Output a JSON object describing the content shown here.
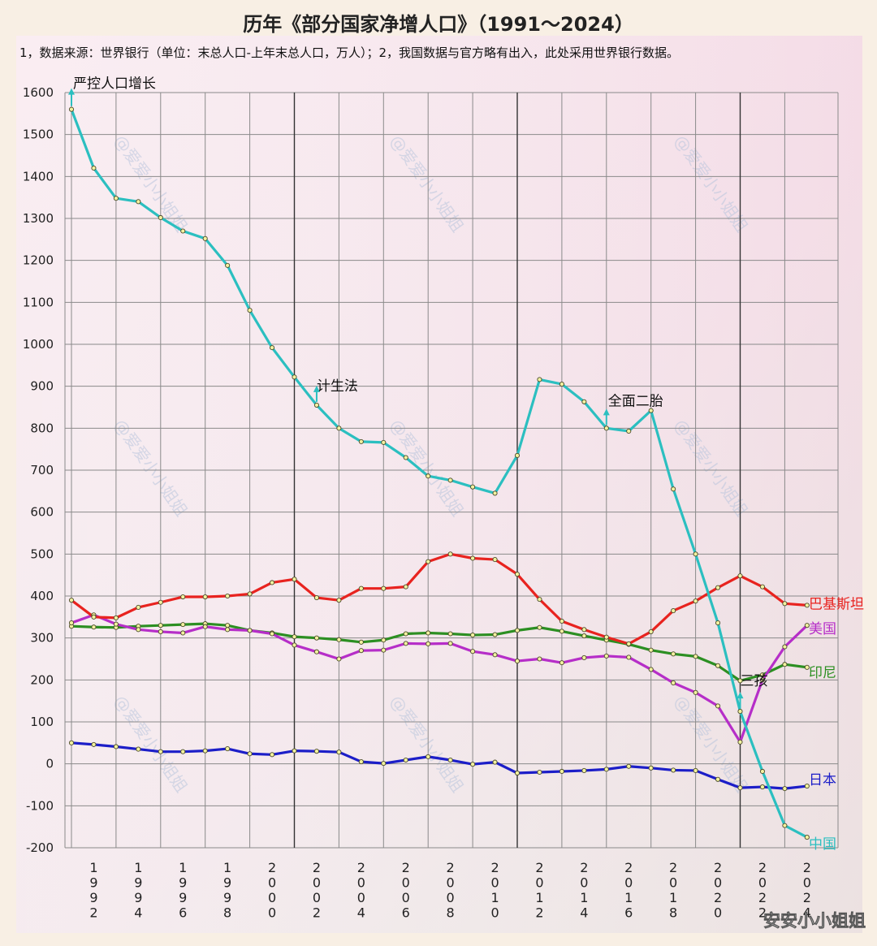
{
  "chart_data": {
    "type": "line",
    "title": "历年《部分国家净增人口》（1991～2024）",
    "subtitle": "1，数据来源：世界银行（单位：末总人口-上年末总人口，万人）；2，我国数据与官方略有出入，此处采用世界银行数据。",
    "x": [
      1991,
      1992,
      1993,
      1994,
      1995,
      1996,
      1997,
      1998,
      1999,
      2000,
      2001,
      2002,
      2003,
      2004,
      2005,
      2006,
      2007,
      2008,
      2009,
      2010,
      2011,
      2012,
      2013,
      2014,
      2015,
      2016,
      2017,
      2018,
      2019,
      2020,
      2021,
      2022,
      2023,
      2024
    ],
    "x_tick_labels": [
      "1992",
      "1994",
      "1996",
      "1998",
      "2000",
      "2002",
      "2004",
      "2006",
      "2008",
      "2010",
      "2012",
      "2014",
      "2016",
      "2018",
      "2020",
      "2022",
      "2024"
    ],
    "ylim": [
      -200,
      1600
    ],
    "y_ticks": [
      1600,
      1500,
      1400,
      1300,
      1200,
      1100,
      1000,
      900,
      800,
      700,
      600,
      500,
      400,
      300,
      200,
      100,
      0,
      -100,
      -200
    ],
    "grid": true,
    "series": [
      {
        "name": "中国",
        "color": "#2bbfc0",
        "values": [
          1560,
          1420,
          1348,
          1340,
          1302,
          1270,
          1252,
          1188,
          1081,
          992,
          922,
          855,
          800,
          768,
          766,
          730,
          686,
          676,
          660,
          645,
          735,
          916,
          905,
          863,
          800,
          793,
          842,
          655,
          500,
          336,
          125,
          -18,
          -147,
          -175
        ]
      },
      {
        "name": "巴基斯坦",
        "color": "#e8231f",
        "values": [
          390,
          350,
          348,
          373,
          385,
          398,
          398,
          400,
          405,
          432,
          440,
          396,
          390,
          418,
          418,
          422,
          482,
          500,
          490,
          487,
          452,
          392,
          340,
          320,
          302,
          286,
          315,
          365,
          388,
          420,
          448,
          422,
          382,
          378
        ]
      },
      {
        "name": "美国",
        "color": "#b62ec8",
        "values": [
          336,
          355,
          333,
          320,
          315,
          312,
          327,
          320,
          318,
          310,
          283,
          267,
          250,
          270,
          271,
          287,
          286,
          287,
          268,
          260,
          245,
          250,
          241,
          253,
          257,
          254,
          225,
          193,
          170,
          138,
          52,
          200,
          279,
          330
        ]
      },
      {
        "name": "印尼",
        "color": "#2c8f22",
        "values": [
          328,
          326,
          325,
          328,
          330,
          332,
          334,
          330,
          318,
          312,
          303,
          300,
          296,
          290,
          295,
          310,
          312,
          310,
          307,
          308,
          318,
          325,
          316,
          305,
          295,
          285,
          271,
          262,
          256,
          234,
          198,
          212,
          237,
          230
        ]
      },
      {
        "name": "日本",
        "color": "#1c1ec8",
        "values": [
          50,
          46,
          41,
          35,
          29,
          29,
          31,
          36,
          24,
          22,
          31,
          30,
          28,
          5,
          1,
          9,
          17,
          9,
          -1,
          4,
          -22,
          -20,
          -18,
          -16,
          -13,
          -6,
          -10,
          -15,
          -16,
          -37,
          -57,
          -55,
          -59,
          -53
        ]
      }
    ],
    "annotations": [
      {
        "text": "严控人口增长",
        "year": 1991
      },
      {
        "text": "计生法",
        "year": 2002
      },
      {
        "text": "全面二胎",
        "year": 2015
      },
      {
        "text": "三孩",
        "year": 2021
      }
    ],
    "watermark": "@爱爱小小姐姐",
    "corner_tag": "安安小小姐姐"
  }
}
